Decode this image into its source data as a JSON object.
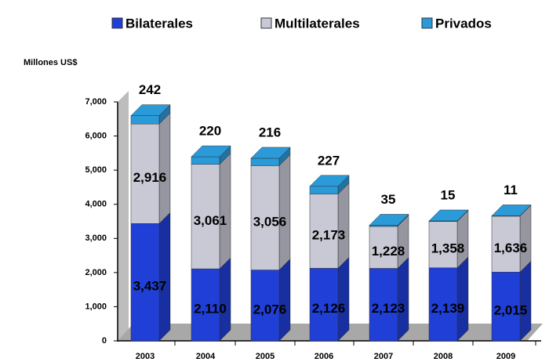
{
  "chart_data": {
    "type": "bar",
    "stacked": true,
    "ylabel": "Millones US$",
    "categories": [
      "2003",
      "2004",
      "2005",
      "2006",
      "2007",
      "2008",
      "2009"
    ],
    "series": [
      {
        "name": "Bilaterales",
        "color": "#1f3fd6",
        "values": [
          3437,
          2110,
          2076,
          2126,
          2123,
          2139,
          2015
        ],
        "value_labels": [
          "3,437",
          "2,110",
          "2,076",
          "2,126",
          "2,123",
          "2,139",
          "2,015"
        ]
      },
      {
        "name": "Multilaterales",
        "color": "#c9c9d6",
        "values": [
          2916,
          3061,
          3056,
          2173,
          1228,
          1358,
          1636
        ],
        "value_labels": [
          "2,916",
          "3,061",
          "3,056",
          "2,173",
          "1,228",
          "1,358",
          "1,636"
        ]
      },
      {
        "name": "Privados",
        "color": "#2b9ad8",
        "values": [
          242,
          220,
          216,
          227,
          35,
          15,
          11
        ]
      }
    ],
    "ylim": [
      0,
      7000
    ],
    "yticks": [
      0,
      {
        "value": 1000,
        "label": "1,000"
      },
      {
        "value": 2000,
        "label": "2,000"
      },
      {
        "value": 3000,
        "label": "3,000"
      },
      {
        "value": 4000,
        "label": "4,000"
      },
      {
        "value": 5000,
        "label": "5,000"
      },
      {
        "value": 6000,
        "label": "6,000"
      },
      {
        "value": 7000,
        "label": "7,000"
      }
    ]
  }
}
